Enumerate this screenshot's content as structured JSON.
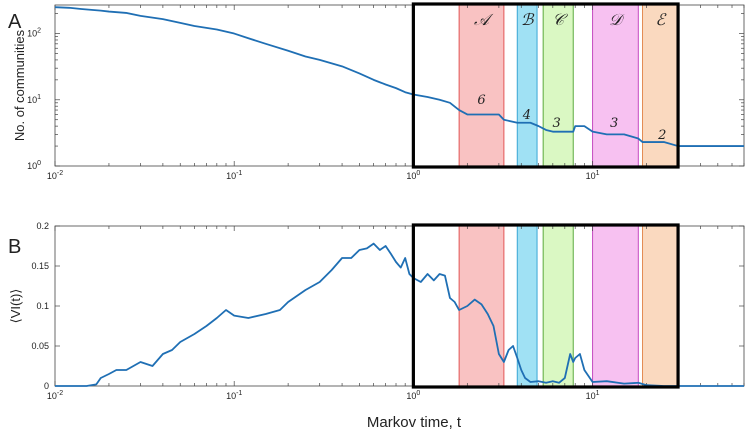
{
  "chart_data": [
    {
      "type": "line",
      "panel_label": "A",
      "ylabel": "No. of communities",
      "xscale": "log",
      "yscale": "log",
      "xlim": [
        0.01,
        70
      ],
      "ylim": [
        1,
        270
      ],
      "xticks": [
        0.01,
        0.1,
        1,
        10
      ],
      "xticklabels": [
        "10",
        "10",
        "10",
        "10"
      ],
      "xtickexponents": [
        "-2",
        "-1",
        "0",
        "1"
      ],
      "yticks": [
        1,
        10,
        100
      ],
      "yticklabels": [
        "10",
        "10",
        "10"
      ],
      "ytickexponents": [
        "0",
        "1",
        "2"
      ],
      "series": [
        {
          "color": "#1f6fb4",
          "x": [
            0.01,
            0.012,
            0.014,
            0.016,
            0.018,
            0.02,
            0.025,
            0.03,
            0.04,
            0.05,
            0.06,
            0.08,
            0.1,
            0.12,
            0.15,
            0.2,
            0.25,
            0.3,
            0.4,
            0.5,
            0.6,
            0.7,
            0.8,
            0.9,
            1.0,
            1.2,
            1.4,
            1.6,
            1.8,
            2.0,
            2.5,
            3.0,
            3.2,
            3.8,
            4.5,
            5.0,
            5.5,
            6.0,
            7.0,
            7.8,
            8.0,
            9.0,
            10.0,
            12.0,
            15.0,
            18.0,
            19.0,
            25.0,
            30.0,
            40.0,
            50.0,
            70.0
          ],
          "y": [
            250,
            245,
            235,
            228,
            222,
            215,
            205,
            185,
            165,
            145,
            130,
            115,
            100,
            85,
            70,
            55,
            45,
            40,
            32,
            25,
            20,
            17,
            15,
            13,
            12,
            11,
            10,
            9,
            7,
            6,
            6,
            6,
            5,
            4.5,
            4.5,
            4,
            3.5,
            3.3,
            3.3,
            3.3,
            4,
            4,
            3.3,
            3,
            3,
            2.6,
            2.3,
            2.3,
            2,
            2,
            2,
            2
          ]
        }
      ],
      "regions": [
        {
          "label": "𝒜",
          "x": [
            1.8,
            3.2
          ],
          "fill": "#f8b7b7",
          "stroke": "#e25555"
        },
        {
          "label": "ℬ",
          "x": [
            3.8,
            4.9
          ],
          "fill": "#8fdcf2",
          "stroke": "#3aa7d4"
        },
        {
          "label": "𝒞",
          "x": [
            5.3,
            7.8
          ],
          "fill": "#d3f7b8",
          "stroke": "#5aaa3d"
        },
        {
          "label": "𝒟",
          "x": [
            10.0,
            18.0
          ],
          "fill": "#f6b6ee",
          "stroke": "#c54ac0"
        },
        {
          "label": "ℰ",
          "x": [
            19.0,
            30.0
          ],
          "fill": "#f9d2b4",
          "stroke": "#e38a52"
        }
      ],
      "count_labels": [
        {
          "text": "6",
          "x": 2.4
        },
        {
          "text": "4",
          "x": 4.3
        },
        {
          "text": "3",
          "x": 6.3
        },
        {
          "text": "3",
          "x": 13.2
        },
        {
          "text": "2",
          "x": 24.5
        }
      ],
      "highlight_box": {
        "x": [
          1.0,
          30.0
        ],
        "color": "#000000"
      }
    },
    {
      "type": "line",
      "panel_label": "B",
      "ylabel": "⟨VI(t)⟩",
      "xlabel": "Markov time, t",
      "xscale": "log",
      "yscale": "linear",
      "xlim": [
        0.01,
        70
      ],
      "ylim": [
        0,
        0.2
      ],
      "xticks": [
        0.01,
        0.1,
        1,
        10
      ],
      "xticklabels": [
        "10",
        "10",
        "10",
        "10"
      ],
      "xtickexponents": [
        "-2",
        "-1",
        "0",
        "1"
      ],
      "yticks": [
        0,
        0.05,
        0.1,
        0.15,
        0.2
      ],
      "yticklabels": [
        "0",
        "0.05",
        "0.1",
        "0.15",
        "0.2"
      ],
      "series": [
        {
          "color": "#1f6fb4",
          "x": [
            0.01,
            0.012,
            0.015,
            0.017,
            0.018,
            0.02,
            0.022,
            0.025,
            0.03,
            0.035,
            0.04,
            0.045,
            0.05,
            0.06,
            0.07,
            0.08,
            0.09,
            0.1,
            0.12,
            0.15,
            0.18,
            0.2,
            0.25,
            0.3,
            0.35,
            0.4,
            0.45,
            0.5,
            0.55,
            0.6,
            0.65,
            0.7,
            0.75,
            0.8,
            0.85,
            0.9,
            0.95,
            1.0,
            1.1,
            1.2,
            1.3,
            1.4,
            1.5,
            1.6,
            1.7,
            1.8,
            2.0,
            2.2,
            2.4,
            2.6,
            2.8,
            3.0,
            3.2,
            3.4,
            3.6,
            3.8,
            4.0,
            4.2,
            4.5,
            5.0,
            5.5,
            6.0,
            6.5,
            7.0,
            7.5,
            7.8,
            8.0,
            8.5,
            9.0,
            10.0,
            12.0,
            15.0,
            18.0,
            20.0,
            25.0,
            30.0,
            40.0,
            50.0,
            70.0
          ],
          "y": [
            0.0,
            0.0,
            0.0,
            0.002,
            0.01,
            0.015,
            0.02,
            0.02,
            0.03,
            0.025,
            0.04,
            0.045,
            0.055,
            0.065,
            0.075,
            0.085,
            0.095,
            0.088,
            0.085,
            0.09,
            0.095,
            0.105,
            0.12,
            0.13,
            0.145,
            0.16,
            0.16,
            0.17,
            0.172,
            0.178,
            0.17,
            0.175,
            0.165,
            0.155,
            0.148,
            0.16,
            0.14,
            0.135,
            0.13,
            0.14,
            0.132,
            0.14,
            0.138,
            0.11,
            0.105,
            0.095,
            0.1,
            0.108,
            0.102,
            0.09,
            0.075,
            0.04,
            0.03,
            0.045,
            0.05,
            0.035,
            0.02,
            0.01,
            0.005,
            0.006,
            0.004,
            0.006,
            0.004,
            0.01,
            0.04,
            0.03,
            0.035,
            0.04,
            0.02,
            0.005,
            0.006,
            0.003,
            0.004,
            0.001,
            0.0,
            0.0,
            0.0,
            0.0,
            0.0
          ]
        }
      ],
      "regions": [
        {
          "x": [
            1.8,
            3.2
          ],
          "fill": "#f8b7b7",
          "stroke": "#e25555"
        },
        {
          "x": [
            3.8,
            4.9
          ],
          "fill": "#8fdcf2",
          "stroke": "#3aa7d4"
        },
        {
          "x": [
            5.3,
            7.8
          ],
          "fill": "#d3f7b8",
          "stroke": "#5aaa3d"
        },
        {
          "x": [
            10.0,
            18.0
          ],
          "fill": "#f6b6ee",
          "stroke": "#c54ac0"
        },
        {
          "x": [
            19.0,
            30.0
          ],
          "fill": "#f9d2b4",
          "stroke": "#e38a52"
        }
      ],
      "highlight_box": {
        "x": [
          1.0,
          30.0
        ],
        "color": "#000000"
      }
    }
  ]
}
